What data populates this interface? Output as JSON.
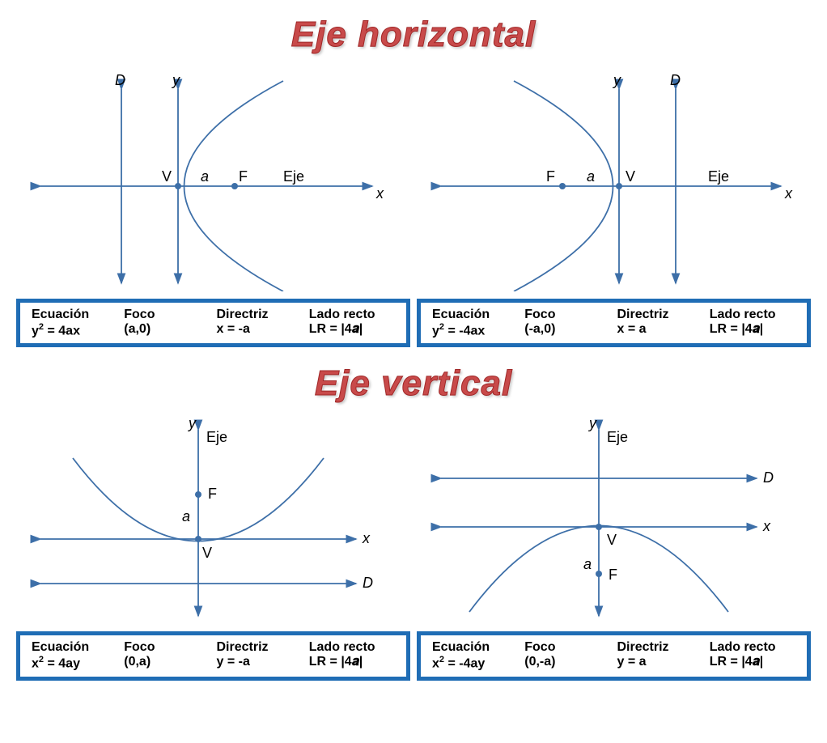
{
  "titles": {
    "horizontal": "Eje horizontal",
    "vertical": "Eje vertical"
  },
  "colors": {
    "title_fill": "#c84a4a",
    "title_stroke": "#a02828",
    "axis": "#3d6fa8",
    "box_border": "#1f6db5",
    "background": "#ffffff",
    "text": "#000000"
  },
  "headers": {
    "equation": "Ecuación",
    "focus": "Foco",
    "directrix": "Directriz",
    "latus": "Lado recto"
  },
  "axis_labels": {
    "x": "x",
    "y": "y",
    "D": "D",
    "V": "V",
    "F": "F",
    "a": "a",
    "Eje": "Eje"
  },
  "panels": [
    {
      "id": "h_right_open",
      "type": "parabola-horizontal-right",
      "equation_html": "y<sup>2</sup> = 4ax",
      "focus": "(a,0)",
      "directrix": "x = -a",
      "latus": "LR = |4𝒂|"
    },
    {
      "id": "h_left_open",
      "type": "parabola-horizontal-left",
      "equation_html": "y<sup>2</sup> = -4ax",
      "focus": "(-a,0)",
      "directrix": "x = a",
      "latus": "LR = |4𝒂|"
    },
    {
      "id": "v_up_open",
      "type": "parabola-vertical-up",
      "equation_html": "x<sup>2</sup> = 4ay",
      "focus": "(0,a)",
      "directrix": "y = -a",
      "latus": "LR = |4𝒂|"
    },
    {
      "id": "v_down_open",
      "type": "parabola-vertical-down",
      "equation_html": "x<sup>2</sup> = -4ay",
      "focus": "(0,-a)",
      "directrix": "y = a",
      "latus": "LR = |4𝒂|"
    }
  ],
  "styling": {
    "title_fontsize": 44,
    "info_fontsize": 16,
    "label_fontsize": 18,
    "axis_stroke_width": 1.8,
    "box_border_width": 5,
    "point_radius": 4
  }
}
